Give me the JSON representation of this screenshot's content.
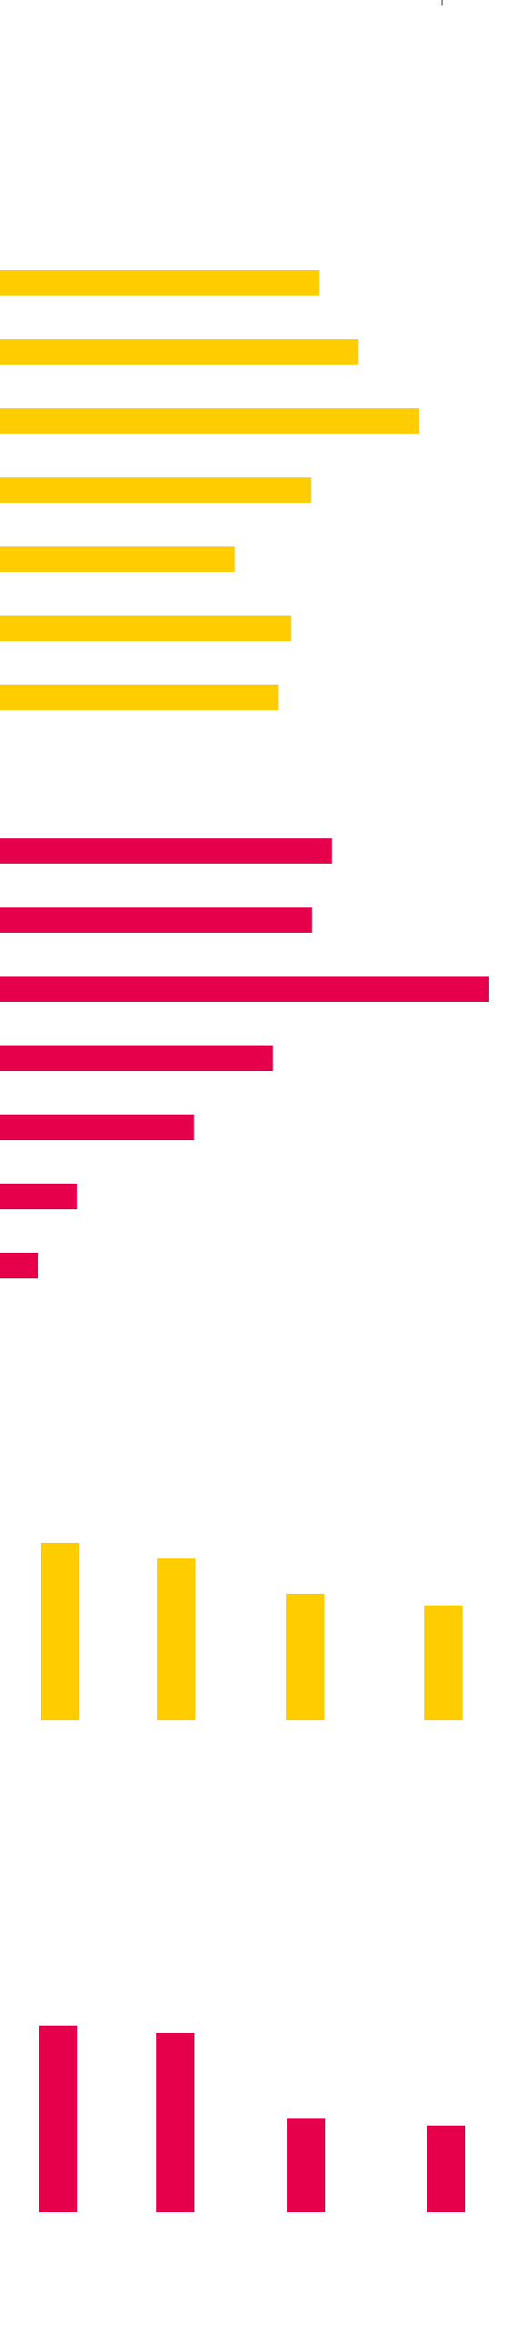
{
  "colors": {
    "yellow": "#FFCC00",
    "crimson": "#E6004C",
    "background": "#FFFFFF"
  },
  "chart_data": [
    {
      "type": "bar",
      "orientation": "horizontal",
      "color": "#FFCC00",
      "values": [
        352,
        395,
        462,
        343,
        259,
        321,
        307
      ],
      "xlim": [
        0,
        540
      ],
      "grid": false,
      "legend": "none"
    },
    {
      "type": "bar",
      "orientation": "horizontal",
      "color": "#E6004C",
      "values": [
        366,
        344,
        539,
        301,
        214,
        85,
        42
      ],
      "xlim": [
        0,
        540
      ],
      "grid": false,
      "legend": "none"
    },
    {
      "type": "bar",
      "orientation": "vertical",
      "color": "#FFCC00",
      "values": [
        195,
        178,
        139,
        126
      ],
      "ylim": [
        0,
        200
      ],
      "grid": false,
      "legend": "none"
    },
    {
      "type": "bar",
      "orientation": "vertical",
      "color": "#E6004C",
      "values": [
        205,
        197,
        103,
        95
      ],
      "ylim": [
        0,
        210
      ],
      "grid": false,
      "legend": "none"
    }
  ]
}
